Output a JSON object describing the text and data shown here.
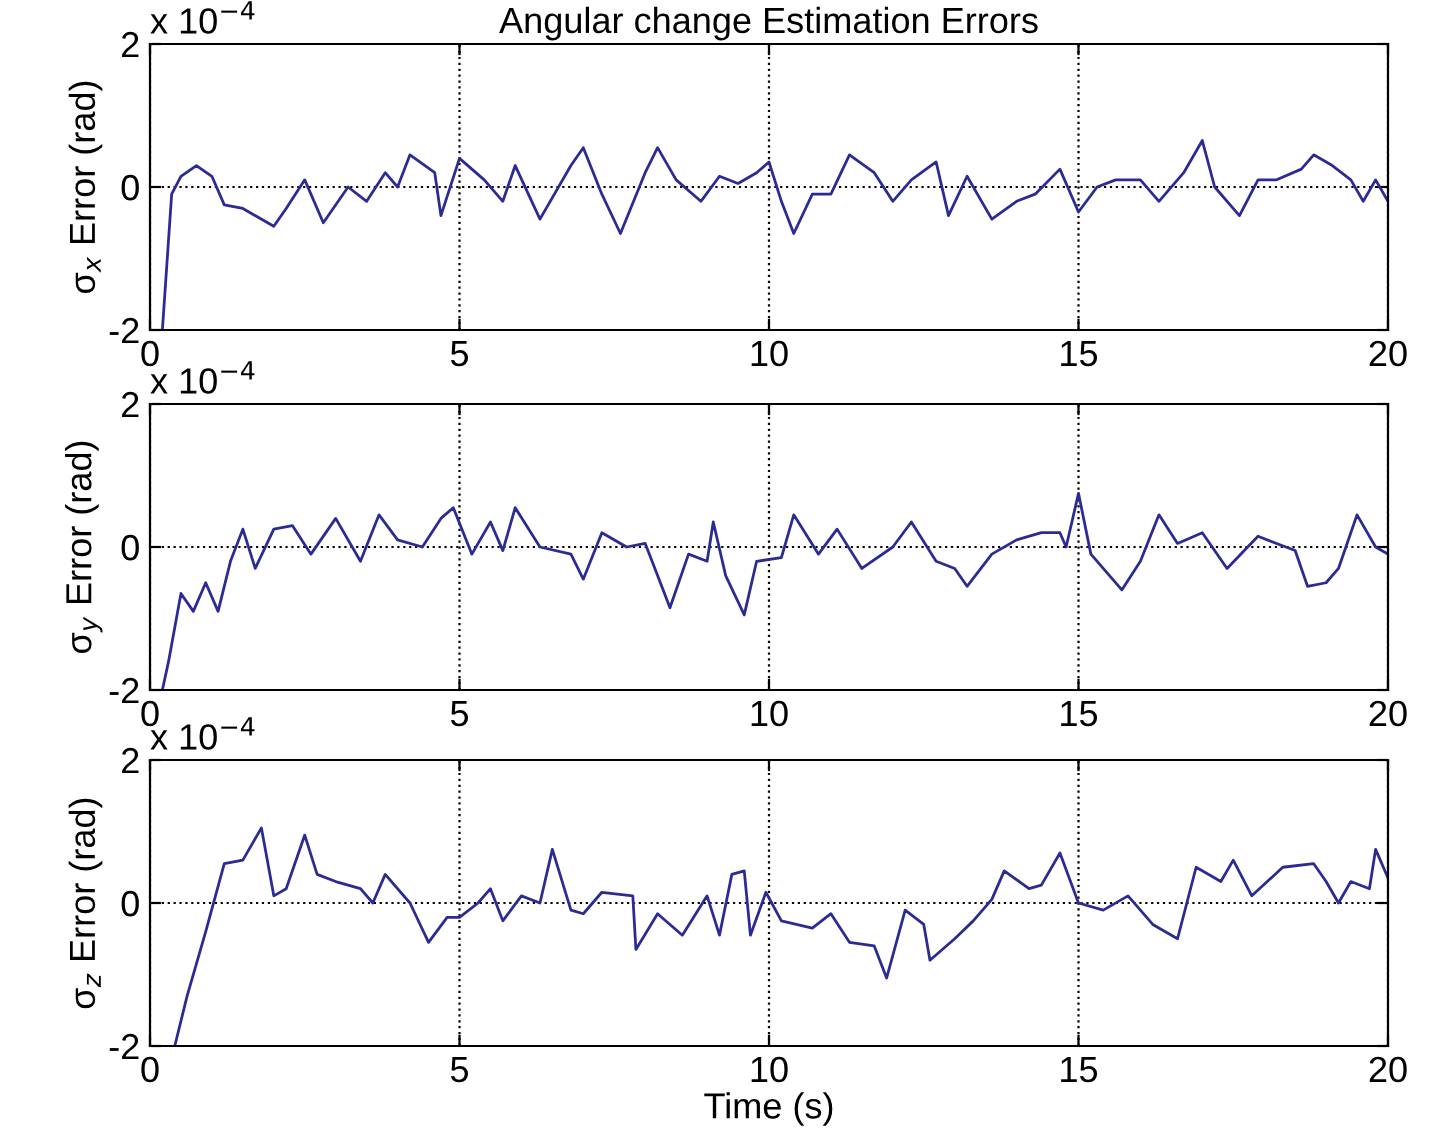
{
  "chart_data": [
    {
      "type": "line",
      "title": "Angular change Estimation Errors",
      "ylabel": "σ$_{x}$ Error (rad)",
      "annotations": [
        "x 10$^{−4}$"
      ],
      "xlim": [
        0,
        20
      ],
      "ylim": [
        -2,
        2
      ],
      "xticks": [
        0,
        5,
        10,
        15,
        20
      ],
      "yticks": [
        -2,
        0,
        2
      ],
      "grid": true,
      "marker": "none",
      "line_style": "solid",
      "series": [
        {
          "color": "#2b2b94",
          "x": [
            0.2,
            0.35,
            0.5,
            0.75,
            1.0,
            1.2,
            1.5,
            2.0,
            2.2,
            2.5,
            2.8,
            3.2,
            3.5,
            3.8,
            4.0,
            4.2,
            4.6,
            4.7,
            5.0,
            5.4,
            5.7,
            5.9,
            6.3,
            6.8,
            7.0,
            7.3,
            7.6,
            8.0,
            8.2,
            8.5,
            8.9,
            9.2,
            9.5,
            9.8,
            10.0,
            10.2,
            10.4,
            10.7,
            11.0,
            11.3,
            11.7,
            12.0,
            12.3,
            12.7,
            12.9,
            13.2,
            13.6,
            14.0,
            14.3,
            14.7,
            15.0,
            15.3,
            15.6,
            16.0,
            16.3,
            16.7,
            17.0,
            17.2,
            17.6,
            17.9,
            18.2,
            18.6,
            18.8,
            19.1,
            19.4,
            19.6,
            19.8,
            20.0
          ],
          "values": [
            -2,
            -0.1,
            0.15,
            0.3,
            0.15,
            -0.25,
            -0.3,
            -0.55,
            -0.3,
            0.1,
            -0.5,
            0,
            -0.2,
            0.2,
            0.0,
            0.45,
            0.2,
            -0.4,
            0.4,
            0.1,
            -0.2,
            0.3,
            -0.45,
            0.3,
            0.55,
            -0.1,
            -0.65,
            0.2,
            0.55,
            0.1,
            -0.2,
            0.15,
            0.05,
            0.2,
            0.35,
            -0.2,
            -0.65,
            -0.1,
            -0.1,
            0.45,
            0.2,
            -0.2,
            0.1,
            0.35,
            -0.4,
            0.15,
            -0.45,
            -0.2,
            -0.1,
            0.25,
            -0.35,
            0,
            0.1,
            0.1,
            -0.2,
            0.2,
            0.65,
            0.0,
            -0.4,
            0.1,
            0.1,
            0.25,
            0.45,
            0.3,
            0.1,
            -0.2,
            0.1,
            -0.2
          ]
        }
      ]
    },
    {
      "type": "line",
      "ylabel": "σ$_{y}$ Error (rad)",
      "annotations": [
        "x 10$^{−4}$"
      ],
      "xlim": [
        0,
        20
      ],
      "ylim": [
        -2,
        2
      ],
      "xticks": [
        0,
        5,
        10,
        15,
        20
      ],
      "yticks": [
        -2,
        0,
        2
      ],
      "grid": true,
      "marker": "none",
      "line_style": "solid",
      "series": [
        {
          "color": "#2b2b94",
          "x": [
            0.2,
            0.3,
            0.5,
            0.7,
            0.9,
            1.1,
            1.3,
            1.5,
            1.7,
            2.0,
            2.3,
            2.6,
            3.0,
            3.4,
            3.7,
            4.0,
            4.4,
            4.7,
            4.9,
            5.2,
            5.5,
            5.7,
            5.9,
            6.3,
            6.8,
            7.0,
            7.3,
            7.7,
            8.0,
            8.2,
            8.4,
            8.7,
            9.0,
            9.1,
            9.3,
            9.6,
            9.8,
            10.2,
            10.4,
            10.8,
            11.1,
            11.5,
            12.0,
            12.3,
            12.7,
            13.0,
            13.2,
            13.6,
            14.0,
            14.4,
            14.7,
            14.8,
            15.0,
            15.2,
            15.7,
            16.0,
            16.3,
            16.6,
            17.0,
            17.4,
            17.9,
            18.2,
            18.5,
            18.7,
            19.0,
            19.2,
            19.5,
            19.8,
            20.0
          ],
          "values": [
            -2,
            -1.6,
            -0.65,
            -0.9,
            -0.5,
            -0.9,
            -0.2,
            0.25,
            -0.3,
            0.25,
            0.3,
            -0.1,
            0.4,
            -0.2,
            0.45,
            0.1,
            0.0,
            0.4,
            0.55,
            -0.1,
            0.35,
            -0.05,
            0.55,
            0.0,
            -0.1,
            -0.45,
            0.2,
            0.0,
            0.05,
            -0.4,
            -0.85,
            -0.1,
            -0.2,
            0.35,
            -0.4,
            -0.95,
            -0.2,
            -0.15,
            0.45,
            -0.1,
            0.25,
            -0.3,
            0.0,
            0.35,
            -0.2,
            -0.3,
            -0.55,
            -0.1,
            0.1,
            0.2,
            0.2,
            0.0,
            0.75,
            -0.1,
            -0.6,
            -0.2,
            0.45,
            0.05,
            0.2,
            -0.3,
            0.15,
            0.05,
            -0.05,
            -0.55,
            -0.5,
            -0.3,
            0.45,
            0.0,
            -0.1
          ]
        }
      ]
    },
    {
      "type": "line",
      "xlabel": "Time (s)",
      "ylabel": "σ$_{z}$ Error (rad)",
      "annotations": [
        "x 10$^{−4}$"
      ],
      "xlim": [
        0,
        20
      ],
      "ylim": [
        -2,
        2
      ],
      "xticks": [
        0,
        5,
        10,
        15,
        20
      ],
      "yticks": [
        -2,
        0,
        2
      ],
      "grid": true,
      "marker": "none",
      "line_style": "solid",
      "series": [
        {
          "color": "#2b2b94",
          "x": [
            0.4,
            0.6,
            0.9,
            1.2,
            1.5,
            1.8,
            2.0,
            2.2,
            2.5,
            2.7,
            3.0,
            3.4,
            3.6,
            3.8,
            4.2,
            4.5,
            4.8,
            5.0,
            5.3,
            5.5,
            5.7,
            6.0,
            6.3,
            6.5,
            6.8,
            7.0,
            7.3,
            7.8,
            7.85,
            8.2,
            8.6,
            9.0,
            9.2,
            9.4,
            9.6,
            9.7,
            9.95,
            10.2,
            10.7,
            11.0,
            11.3,
            11.7,
            11.9,
            12.2,
            12.5,
            12.6,
            13.0,
            13.3,
            13.6,
            13.8,
            14.2,
            14.4,
            14.7,
            15.0,
            15.4,
            15.8,
            16.2,
            16.6,
            16.9,
            17.3,
            17.5,
            17.8,
            18.3,
            18.8,
            19.0,
            19.2,
            19.4,
            19.7,
            19.8,
            20.0
          ],
          "values": [
            -2,
            -1.3,
            -0.4,
            0.55,
            0.6,
            1.05,
            0.1,
            0.2,
            0.95,
            0.4,
            0.3,
            0.2,
            0.0,
            0.4,
            0.0,
            -0.55,
            -0.2,
            -0.2,
            0.0,
            0.2,
            -0.25,
            0.1,
            0.0,
            0.75,
            -0.1,
            -0.15,
            0.15,
            0.1,
            -0.65,
            -0.15,
            -0.45,
            0.1,
            -0.45,
            0.4,
            0.45,
            -0.45,
            0.15,
            -0.25,
            -0.35,
            -0.15,
            -0.55,
            -0.6,
            -1.05,
            -0.1,
            -0.3,
            -0.8,
            -0.5,
            -0.25,
            0.05,
            0.45,
            0.2,
            0.25,
            0.7,
            0.0,
            -0.1,
            0.1,
            -0.3,
            -0.5,
            0.5,
            0.3,
            0.6,
            0.1,
            0.5,
            0.55,
            0.3,
            0.0,
            0.3,
            0.2,
            0.75,
            0.35
          ]
        }
      ]
    }
  ]
}
